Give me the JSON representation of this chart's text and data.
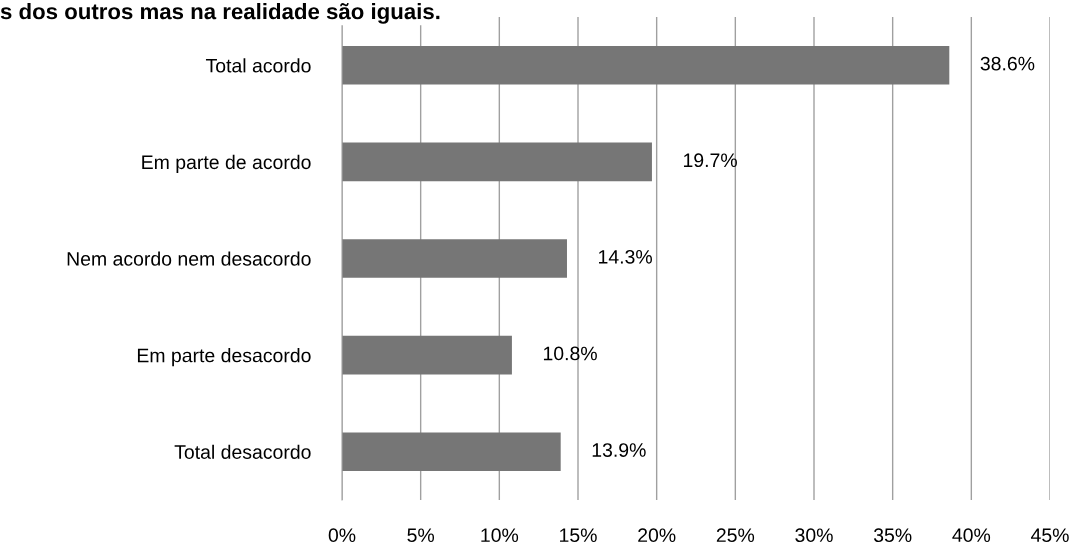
{
  "chart_data": {
    "type": "bar",
    "orientation": "horizontal",
    "title": "s dos outros mas na realidade são iguais.",
    "categories": [
      "Total acordo",
      "Em parte de acordo",
      "Nem acordo nem desacordo",
      "Em parte desacordo",
      "Total desacordo"
    ],
    "values": [
      38.6,
      19.7,
      14.3,
      10.8,
      13.9
    ],
    "value_labels": [
      "38.6%",
      "19.7%",
      "14.3%",
      "10.8%",
      "13.9%"
    ],
    "color": "#767676",
    "xlim": [
      0,
      45
    ],
    "xticks": [
      {
        "value": 0,
        "label": "0%"
      },
      {
        "value": 5,
        "label": "5%"
      },
      {
        "value": 10,
        "label": "10%"
      },
      {
        "value": 15,
        "label": "15%"
      },
      {
        "value": 20,
        "label": "20%"
      },
      {
        "value": 25,
        "label": "25%"
      },
      {
        "value": 30,
        "label": "30%"
      },
      {
        "value": 35,
        "label": "35%"
      },
      {
        "value": 40,
        "label": "40%"
      },
      {
        "value": 45,
        "label": "45%"
      }
    ],
    "grid": "x"
  }
}
